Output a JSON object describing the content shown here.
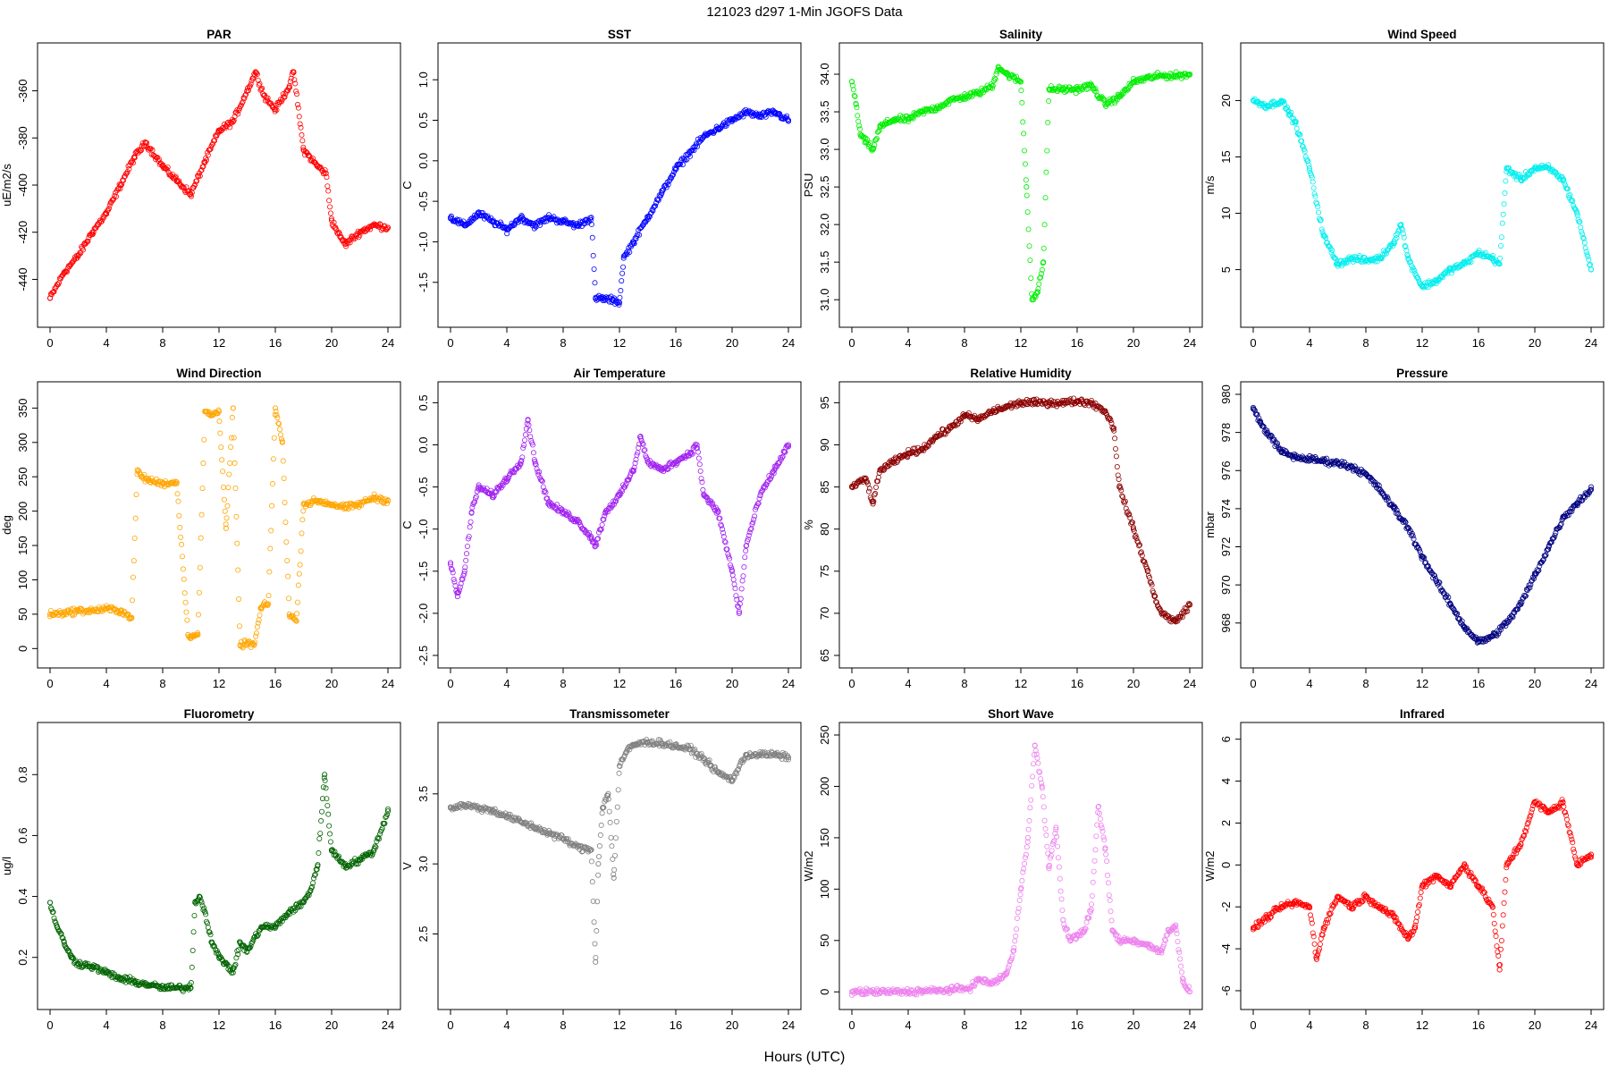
{
  "figure": {
    "title": "121023    d297    1-Min   JGOFS Data",
    "xlabel": "Hours (UTC)"
  },
  "chart_data": [
    {
      "type": "scatter",
      "title": "PAR",
      "ylabel": "uE/m2/s",
      "color": "#ff0000",
      "xlim": [
        0,
        24
      ],
      "xticks": [
        0,
        4,
        8,
        12,
        16,
        20,
        24
      ],
      "ylim": [
        -455,
        -345
      ],
      "yticks": [
        -440,
        -420,
        -400,
        -380,
        -360
      ],
      "x": [
        0,
        1,
        2,
        3,
        4,
        5,
        6,
        6.8,
        8,
        9,
        10,
        11,
        12,
        13,
        14,
        14.6,
        15.2,
        16,
        17,
        17.3,
        18,
        19,
        19.6,
        20,
        20.6,
        21,
        22,
        23,
        24
      ],
      "y": [
        -448,
        -437,
        -430,
        -420,
        -412,
        -400,
        -388,
        -382,
        -392,
        -398,
        -404,
        -390,
        -377,
        -373,
        -360,
        -352,
        -362,
        -368,
        -358,
        -352,
        -385,
        -392,
        -395,
        -415,
        -422,
        -425,
        -420,
        -417,
        -418
      ]
    },
    {
      "type": "scatter",
      "title": "SST",
      "ylabel": "C",
      "color": "#0000ff",
      "xlim": [
        0,
        24
      ],
      "xticks": [
        0,
        4,
        8,
        12,
        16,
        20,
        24
      ],
      "ylim": [
        -1.9,
        1.3
      ],
      "yticks": [
        -1.5,
        -1.0,
        -0.5,
        0.0,
        0.5,
        1.0
      ],
      "x": [
        0,
        1,
        2,
        3,
        4,
        5,
        6,
        7,
        8,
        9,
        10,
        10.3,
        10.8,
        11.5,
        12,
        12.3,
        13,
        14,
        15,
        16,
        17,
        18,
        19,
        20,
        21,
        22,
        23,
        24
      ],
      "y": [
        -0.7,
        -0.8,
        -0.65,
        -0.75,
        -0.85,
        -0.7,
        -0.8,
        -0.7,
        -0.75,
        -0.8,
        -0.7,
        -1.7,
        -1.7,
        -1.72,
        -1.75,
        -1.2,
        -1.0,
        -0.7,
        -0.4,
        -0.1,
        0.1,
        0.3,
        0.4,
        0.5,
        0.6,
        0.55,
        0.6,
        0.5
      ]
    },
    {
      "type": "scatter",
      "title": "Salinity",
      "ylabel": "PSU",
      "color": "#00ee00",
      "xlim": [
        0,
        24
      ],
      "xticks": [
        0,
        4,
        8,
        12,
        16,
        20,
        24
      ],
      "ylim": [
        30.8,
        34.25
      ],
      "yticks": [
        31.0,
        31.5,
        32.0,
        32.5,
        33.0,
        33.5,
        34.0
      ],
      "x": [
        0,
        0.3,
        0.6,
        1,
        1.5,
        2,
        3,
        4,
        5,
        6,
        7,
        8,
        9,
        10,
        10.4,
        11,
        12,
        12.4,
        12.8,
        13.2,
        13.6,
        14,
        15,
        16,
        17,
        18,
        19,
        20,
        21,
        22,
        23,
        24
      ],
      "y": [
        33.9,
        33.6,
        33.2,
        33.1,
        33.0,
        33.3,
        33.4,
        33.4,
        33.5,
        33.55,
        33.65,
        33.7,
        33.75,
        33.85,
        34.1,
        34.0,
        33.9,
        32.5,
        31.0,
        31.1,
        31.5,
        33.8,
        33.8,
        33.8,
        33.85,
        33.6,
        33.7,
        33.9,
        33.95,
        33.98,
        33.98,
        34.0
      ]
    },
    {
      "type": "scatter",
      "title": "Wind Speed",
      "ylabel": "m/s",
      "color": "#00eeee",
      "xlim": [
        0,
        24
      ],
      "xticks": [
        0,
        4,
        8,
        12,
        16,
        20,
        24
      ],
      "ylim": [
        1,
        24
      ],
      "yticks": [
        5,
        10,
        15,
        20
      ],
      "x": [
        0,
        1,
        2,
        2.5,
        3,
        4,
        5,
        6,
        7,
        8,
        9,
        10,
        10.5,
        11,
        12,
        13,
        14,
        15,
        16,
        17,
        17.5,
        18,
        19,
        20,
        21,
        22,
        23,
        24
      ],
      "y": [
        20,
        19.5,
        20,
        19,
        18,
        14,
        8,
        5.5,
        6,
        5.8,
        6,
        7.5,
        9,
        6,
        3.5,
        4,
        5,
        5.5,
        6.5,
        6,
        5.5,
        14,
        13,
        14,
        14,
        13,
        10,
        5
      ]
    },
    {
      "type": "scatter",
      "title": "Wind Direction",
      "ylabel": "deg",
      "color": "#ffa500",
      "xlim": [
        0,
        24
      ],
      "xticks": [
        0,
        4,
        8,
        12,
        16,
        20,
        24
      ],
      "ylim": [
        -10,
        370
      ],
      "yticks": [
        0,
        50,
        100,
        150,
        200,
        250,
        300,
        350
      ],
      "x": [
        0,
        1,
        2,
        3,
        4,
        5,
        5.8,
        6.2,
        6.5,
        7,
        8,
        9,
        9.8,
        10,
        10.5,
        11,
        11.5,
        12,
        12.5,
        13,
        13.5,
        14,
        14.5,
        15,
        15.5,
        16,
        16.5,
        17,
        17.5,
        18,
        19,
        20,
        21,
        22,
        23,
        24
      ],
      "y": [
        50,
        52,
        55,
        55,
        58,
        55,
        45,
        260,
        250,
        245,
        240,
        242,
        20,
        18,
        20,
        345,
        340,
        345,
        175,
        350,
        5,
        8,
        5,
        60,
        65,
        350,
        300,
        50,
        40,
        210,
        215,
        210,
        205,
        210,
        220,
        215
      ]
    },
    {
      "type": "scatter",
      "title": "Air Temperature",
      "ylabel": "C",
      "color": "#a020f0",
      "xlim": [
        0,
        24
      ],
      "xticks": [
        0,
        4,
        8,
        12,
        16,
        20,
        24
      ],
      "ylim": [
        -2.5,
        0.6
      ],
      "yticks": [
        -2.5,
        -2.0,
        -1.5,
        -1.0,
        -0.5,
        0.0,
        0.5
      ],
      "x": [
        0,
        0.5,
        1,
        1.5,
        2,
        3,
        4,
        5,
        5.5,
        6,
        7,
        8,
        9,
        10,
        10.3,
        11,
        12,
        13,
        13.5,
        14,
        15,
        16,
        17,
        17.5,
        18,
        19,
        20,
        20.5,
        21,
        22,
        23,
        24
      ],
      "y": [
        -1.4,
        -1.8,
        -1.5,
        -0.8,
        -0.5,
        -0.6,
        -0.4,
        -0.2,
        0.3,
        -0.2,
        -0.7,
        -0.8,
        -0.9,
        -1.1,
        -1.2,
        -0.8,
        -0.6,
        -0.3,
        0.1,
        -0.2,
        -0.3,
        -0.2,
        -0.1,
        0.0,
        -0.6,
        -0.8,
        -1.5,
        -2.0,
        -1.2,
        -0.6,
        -0.3,
        0.0
      ]
    },
    {
      "type": "scatter",
      "title": "Relative Humidity",
      "ylabel": "%",
      "color": "#8b0000",
      "xlim": [
        0,
        24
      ],
      "xticks": [
        0,
        4,
        8,
        12,
        16,
        20,
        24
      ],
      "ylim": [
        65,
        96
      ],
      "yticks": [
        65,
        70,
        75,
        80,
        85,
        90,
        95
      ],
      "x": [
        0,
        1,
        1.5,
        2,
        3,
        4,
        5,
        6,
        7,
        8,
        9,
        10,
        11,
        12,
        13,
        14,
        15,
        16,
        17,
        18,
        18.6,
        19,
        20,
        21,
        21.5,
        22,
        23,
        24
      ],
      "y": [
        85,
        86,
        83,
        87,
        88,
        89,
        89.5,
        91,
        92,
        93.5,
        93,
        94,
        94.5,
        95,
        95,
        95,
        95,
        95.2,
        95,
        94,
        92,
        85,
        80,
        75,
        72,
        70,
        69,
        71
      ]
    },
    {
      "type": "scatter",
      "title": "Pressure",
      "ylabel": "mbar",
      "color": "#000080",
      "xlim": [
        0,
        24
      ],
      "xticks": [
        0,
        4,
        8,
        12,
        16,
        20,
        24
      ],
      "ylim": [
        966.3,
        980
      ],
      "yticks": [
        968,
        970,
        972,
        974,
        976,
        978,
        980
      ],
      "x": [
        0,
        0.5,
        1,
        2,
        3,
        4,
        5,
        6,
        7,
        8,
        9,
        10,
        11,
        12,
        13,
        14,
        15,
        16,
        17,
        18,
        19,
        20,
        21,
        22,
        23,
        24
      ],
      "y": [
        979.3,
        978.5,
        978,
        977,
        976.7,
        976.6,
        976.5,
        976.4,
        976.2,
        975.8,
        975,
        974,
        973,
        971.5,
        970.2,
        969,
        967.8,
        967,
        967.3,
        968,
        969,
        970.5,
        972,
        973.5,
        974.3,
        975
      ]
    },
    {
      "type": "scatter",
      "title": "Fluorometry",
      "ylabel": "ug/l",
      "color": "#006400",
      "xlim": [
        0,
        24
      ],
      "xticks": [
        0,
        4,
        8,
        12,
        16,
        20,
        24
      ],
      "ylim": [
        0.07,
        0.93
      ],
      "yticks": [
        0.2,
        0.4,
        0.6,
        0.8
      ],
      "x": [
        0,
        0.5,
        1,
        1.5,
        2,
        3,
        4,
        5,
        6,
        7,
        8,
        9,
        10,
        10.3,
        10.6,
        11,
        11.5,
        12,
        12.5,
        13,
        13.5,
        14,
        15,
        16,
        17,
        18,
        18.5,
        19,
        19.5,
        20,
        21,
        22,
        23,
        24
      ],
      "y": [
        0.38,
        0.3,
        0.25,
        0.2,
        0.18,
        0.17,
        0.15,
        0.13,
        0.12,
        0.11,
        0.1,
        0.1,
        0.1,
        0.38,
        0.4,
        0.35,
        0.25,
        0.2,
        0.18,
        0.15,
        0.25,
        0.22,
        0.3,
        0.3,
        0.35,
        0.38,
        0.42,
        0.5,
        0.8,
        0.55,
        0.5,
        0.52,
        0.55,
        0.68
      ]
    },
    {
      "type": "scatter",
      "title": "Transmissometer",
      "ylabel": "V",
      "color": "#808080",
      "xlim": [
        0,
        24
      ],
      "xticks": [
        0,
        4,
        8,
        12,
        16,
        20,
        24
      ],
      "ylim": [
        2.05,
        3.92
      ],
      "yticks": [
        2.5,
        3.0,
        3.5
      ],
      "x": [
        0,
        1,
        2,
        3,
        4,
        5,
        6,
        7,
        8,
        9,
        10,
        10.3,
        10.5,
        10.8,
        11.2,
        11.6,
        12,
        12.5,
        13,
        14,
        15,
        16,
        17,
        18,
        18.5,
        19,
        20,
        21,
        22,
        23,
        24
      ],
      "y": [
        3.4,
        3.42,
        3.4,
        3.38,
        3.34,
        3.3,
        3.26,
        3.22,
        3.18,
        3.12,
        3.1,
        2.3,
        3.0,
        3.4,
        3.5,
        2.9,
        3.7,
        3.8,
        3.85,
        3.87,
        3.86,
        3.84,
        3.82,
        3.75,
        3.7,
        3.65,
        3.6,
        3.78,
        3.78,
        3.78,
        3.76
      ]
    },
    {
      "type": "scatter",
      "title": "Short Wave",
      "ylabel": "W/m2",
      "color": "#ee82ee",
      "xlim": [
        0,
        24
      ],
      "xticks": [
        0,
        4,
        8,
        12,
        16,
        20,
        24
      ],
      "ylim": [
        -5,
        250
      ],
      "yticks": [
        0,
        50,
        100,
        150,
        200,
        250
      ],
      "x": [
        0,
        1,
        2,
        3,
        4,
        5,
        6,
        7,
        8,
        8.5,
        9,
        10,
        11,
        11.5,
        12,
        12.5,
        13,
        13.5,
        14,
        14.5,
        15,
        15.5,
        16,
        16.5,
        17,
        17.5,
        18,
        18.5,
        19,
        20,
        21,
        22,
        22.5,
        23,
        23.5,
        24
      ],
      "y": [
        0,
        0,
        0,
        0,
        0,
        1,
        1,
        2,
        3,
        5,
        12,
        8,
        18,
        40,
        100,
        150,
        240,
        200,
        120,
        160,
        70,
        50,
        55,
        60,
        80,
        180,
        140,
        60,
        50,
        50,
        45,
        40,
        60,
        65,
        10,
        0
      ]
    },
    {
      "type": "scatter",
      "title": "Infrared",
      "ylabel": "W/m2",
      "color": "#ff0000",
      "xlim": [
        0,
        24
      ],
      "xticks": [
        0,
        4,
        8,
        12,
        16,
        20,
        24
      ],
      "ylim": [
        -6.3,
        6.2
      ],
      "yticks": [
        -6,
        -4,
        -2,
        0,
        2,
        4,
        6
      ],
      "x": [
        0,
        1,
        2,
        3,
        4,
        4.5,
        5,
        6,
        7,
        8,
        9,
        10,
        11,
        11.5,
        12,
        13,
        14,
        15,
        16,
        17,
        17.5,
        18,
        19,
        20,
        21,
        22,
        23,
        24
      ],
      "y": [
        -3,
        -2.5,
        -2,
        -1.8,
        -2,
        -4.5,
        -3,
        -1.5,
        -2,
        -1.5,
        -2,
        -2.5,
        -3.5,
        -3,
        -1,
        -0.5,
        -1,
        0,
        -1,
        -2,
        -5,
        0,
        1,
        3,
        2.5,
        3,
        0,
        0.5
      ]
    }
  ]
}
